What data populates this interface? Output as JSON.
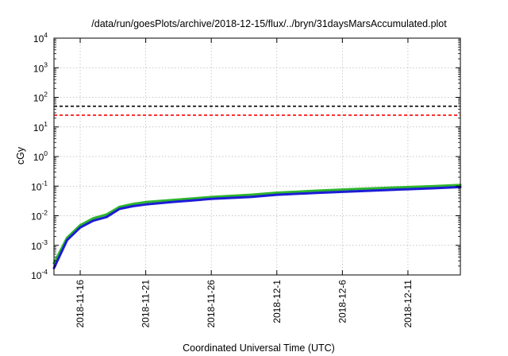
{
  "chart_data": {
    "type": "line",
    "title": "/data/run/goesPlots/archive/2018-12-15/flux/../bryn/31daysMarsAccumulated.plot",
    "xlabel": "Coordinated Universal Time (UTC)",
    "ylabel": "cGy",
    "x_axis": {
      "type": "date",
      "range": [
        "2018-11-14",
        "2018-12-15"
      ],
      "ticks": [
        "2018-11-16",
        "2018-11-21",
        "2018-11-26",
        "2018-12-1",
        "2018-12-6",
        "2018-12-11"
      ]
    },
    "y_axis": {
      "scale": "log",
      "range": [
        0.0001,
        10000
      ],
      "tick_labels": [
        {
          "base": "10",
          "exp": "-4"
        },
        {
          "base": "10",
          "exp": "-3"
        },
        {
          "base": "10",
          "exp": "-2"
        },
        {
          "base": "10",
          "exp": "-1"
        },
        {
          "base": "10",
          "exp": "0"
        },
        {
          "base": "10",
          "exp": "1"
        },
        {
          "base": "10",
          "exp": "2"
        },
        {
          "base": "10",
          "exp": "3"
        },
        {
          "base": "10",
          "exp": "4"
        }
      ]
    },
    "grid": true,
    "series": [
      {
        "color": "#2db52d",
        "x": [
          "2018-11-14",
          "2018-11-15",
          "2018-11-16",
          "2018-11-17",
          "2018-11-18",
          "2018-11-19",
          "2018-11-20",
          "2018-11-21",
          "2018-11-23",
          "2018-11-26",
          "2018-11-29",
          "2018-12-01",
          "2018-12-04",
          "2018-12-07",
          "2018-12-10",
          "2018-12-13",
          "2018-12-15"
        ],
        "values": [
          0.00025,
          0.0018,
          0.0048,
          0.0082,
          0.011,
          0.02,
          0.025,
          0.029,
          0.034,
          0.043,
          0.051,
          0.06,
          0.07,
          0.08,
          0.09,
          0.1,
          0.11
        ]
      },
      {
        "color": "#1c1cd6",
        "x": [
          "2018-11-14",
          "2018-11-15",
          "2018-11-16",
          "2018-11-17",
          "2018-11-18",
          "2018-11-19",
          "2018-11-20",
          "2018-11-21",
          "2018-11-23",
          "2018-11-26",
          "2018-11-29",
          "2018-12-01",
          "2018-12-04",
          "2018-12-07",
          "2018-12-10",
          "2018-12-13",
          "2018-12-15"
        ],
        "values": [
          0.00017,
          0.0015,
          0.004,
          0.0068,
          0.009,
          0.017,
          0.021,
          0.024,
          0.029,
          0.037,
          0.043,
          0.051,
          0.059,
          0.067,
          0.076,
          0.085,
          0.093
        ]
      }
    ],
    "reference_lines": [
      {
        "color": "#000000",
        "y": 50,
        "style": "dashed"
      },
      {
        "color": "#ff0000",
        "y": 25,
        "style": "dashed"
      }
    ]
  }
}
